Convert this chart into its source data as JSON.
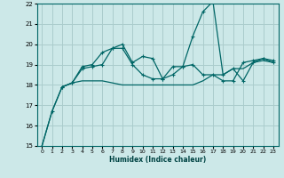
{
  "xlabel": "Humidex (Indice chaleur)",
  "background_color": "#cce8e8",
  "grid_color": "#aacccc",
  "line_color": "#006666",
  "xlim": [
    -0.5,
    23.5
  ],
  "ylim": [
    15,
    22
  ],
  "yticks": [
    15,
    16,
    17,
    18,
    19,
    20,
    21,
    22
  ],
  "xticks": [
    0,
    1,
    2,
    3,
    4,
    5,
    6,
    7,
    8,
    9,
    10,
    11,
    12,
    13,
    14,
    15,
    16,
    17,
    18,
    19,
    20,
    21,
    22,
    23
  ],
  "line1_x": [
    0,
    1,
    2,
    3,
    4,
    5,
    6,
    7,
    8,
    9,
    10,
    11,
    12,
    13,
    14,
    15,
    16,
    17,
    18,
    19,
    20,
    21,
    22,
    23
  ],
  "line1_y": [
    15.0,
    16.7,
    17.9,
    18.1,
    18.8,
    18.9,
    19.0,
    19.8,
    19.8,
    19.0,
    18.5,
    18.3,
    18.3,
    18.5,
    18.9,
    19.0,
    18.5,
    18.5,
    18.2,
    18.2,
    19.1,
    19.2,
    19.3,
    19.2
  ],
  "line2_x": [
    2,
    3,
    4,
    5,
    6,
    7,
    8,
    9,
    10,
    11,
    12,
    13,
    14,
    15,
    16,
    17,
    18,
    19,
    20,
    21,
    22,
    23
  ],
  "line2_y": [
    17.9,
    18.1,
    18.9,
    19.0,
    19.6,
    19.8,
    20.0,
    19.1,
    19.4,
    19.3,
    18.3,
    18.9,
    18.9,
    20.4,
    21.6,
    22.1,
    18.5,
    18.8,
    18.2,
    19.1,
    19.3,
    19.1
  ],
  "line3_x": [
    0,
    1,
    2,
    3,
    4,
    5,
    6,
    7,
    8,
    9,
    10,
    11,
    12,
    13,
    14,
    15,
    16,
    17,
    18,
    19,
    20,
    21,
    22,
    23
  ],
  "line3_y": [
    15.0,
    16.7,
    17.9,
    18.1,
    18.2,
    18.2,
    18.2,
    18.1,
    18.0,
    18.0,
    18.0,
    18.0,
    18.0,
    18.0,
    18.0,
    18.0,
    18.2,
    18.5,
    18.5,
    18.8,
    18.8,
    19.1,
    19.2,
    19.1
  ]
}
